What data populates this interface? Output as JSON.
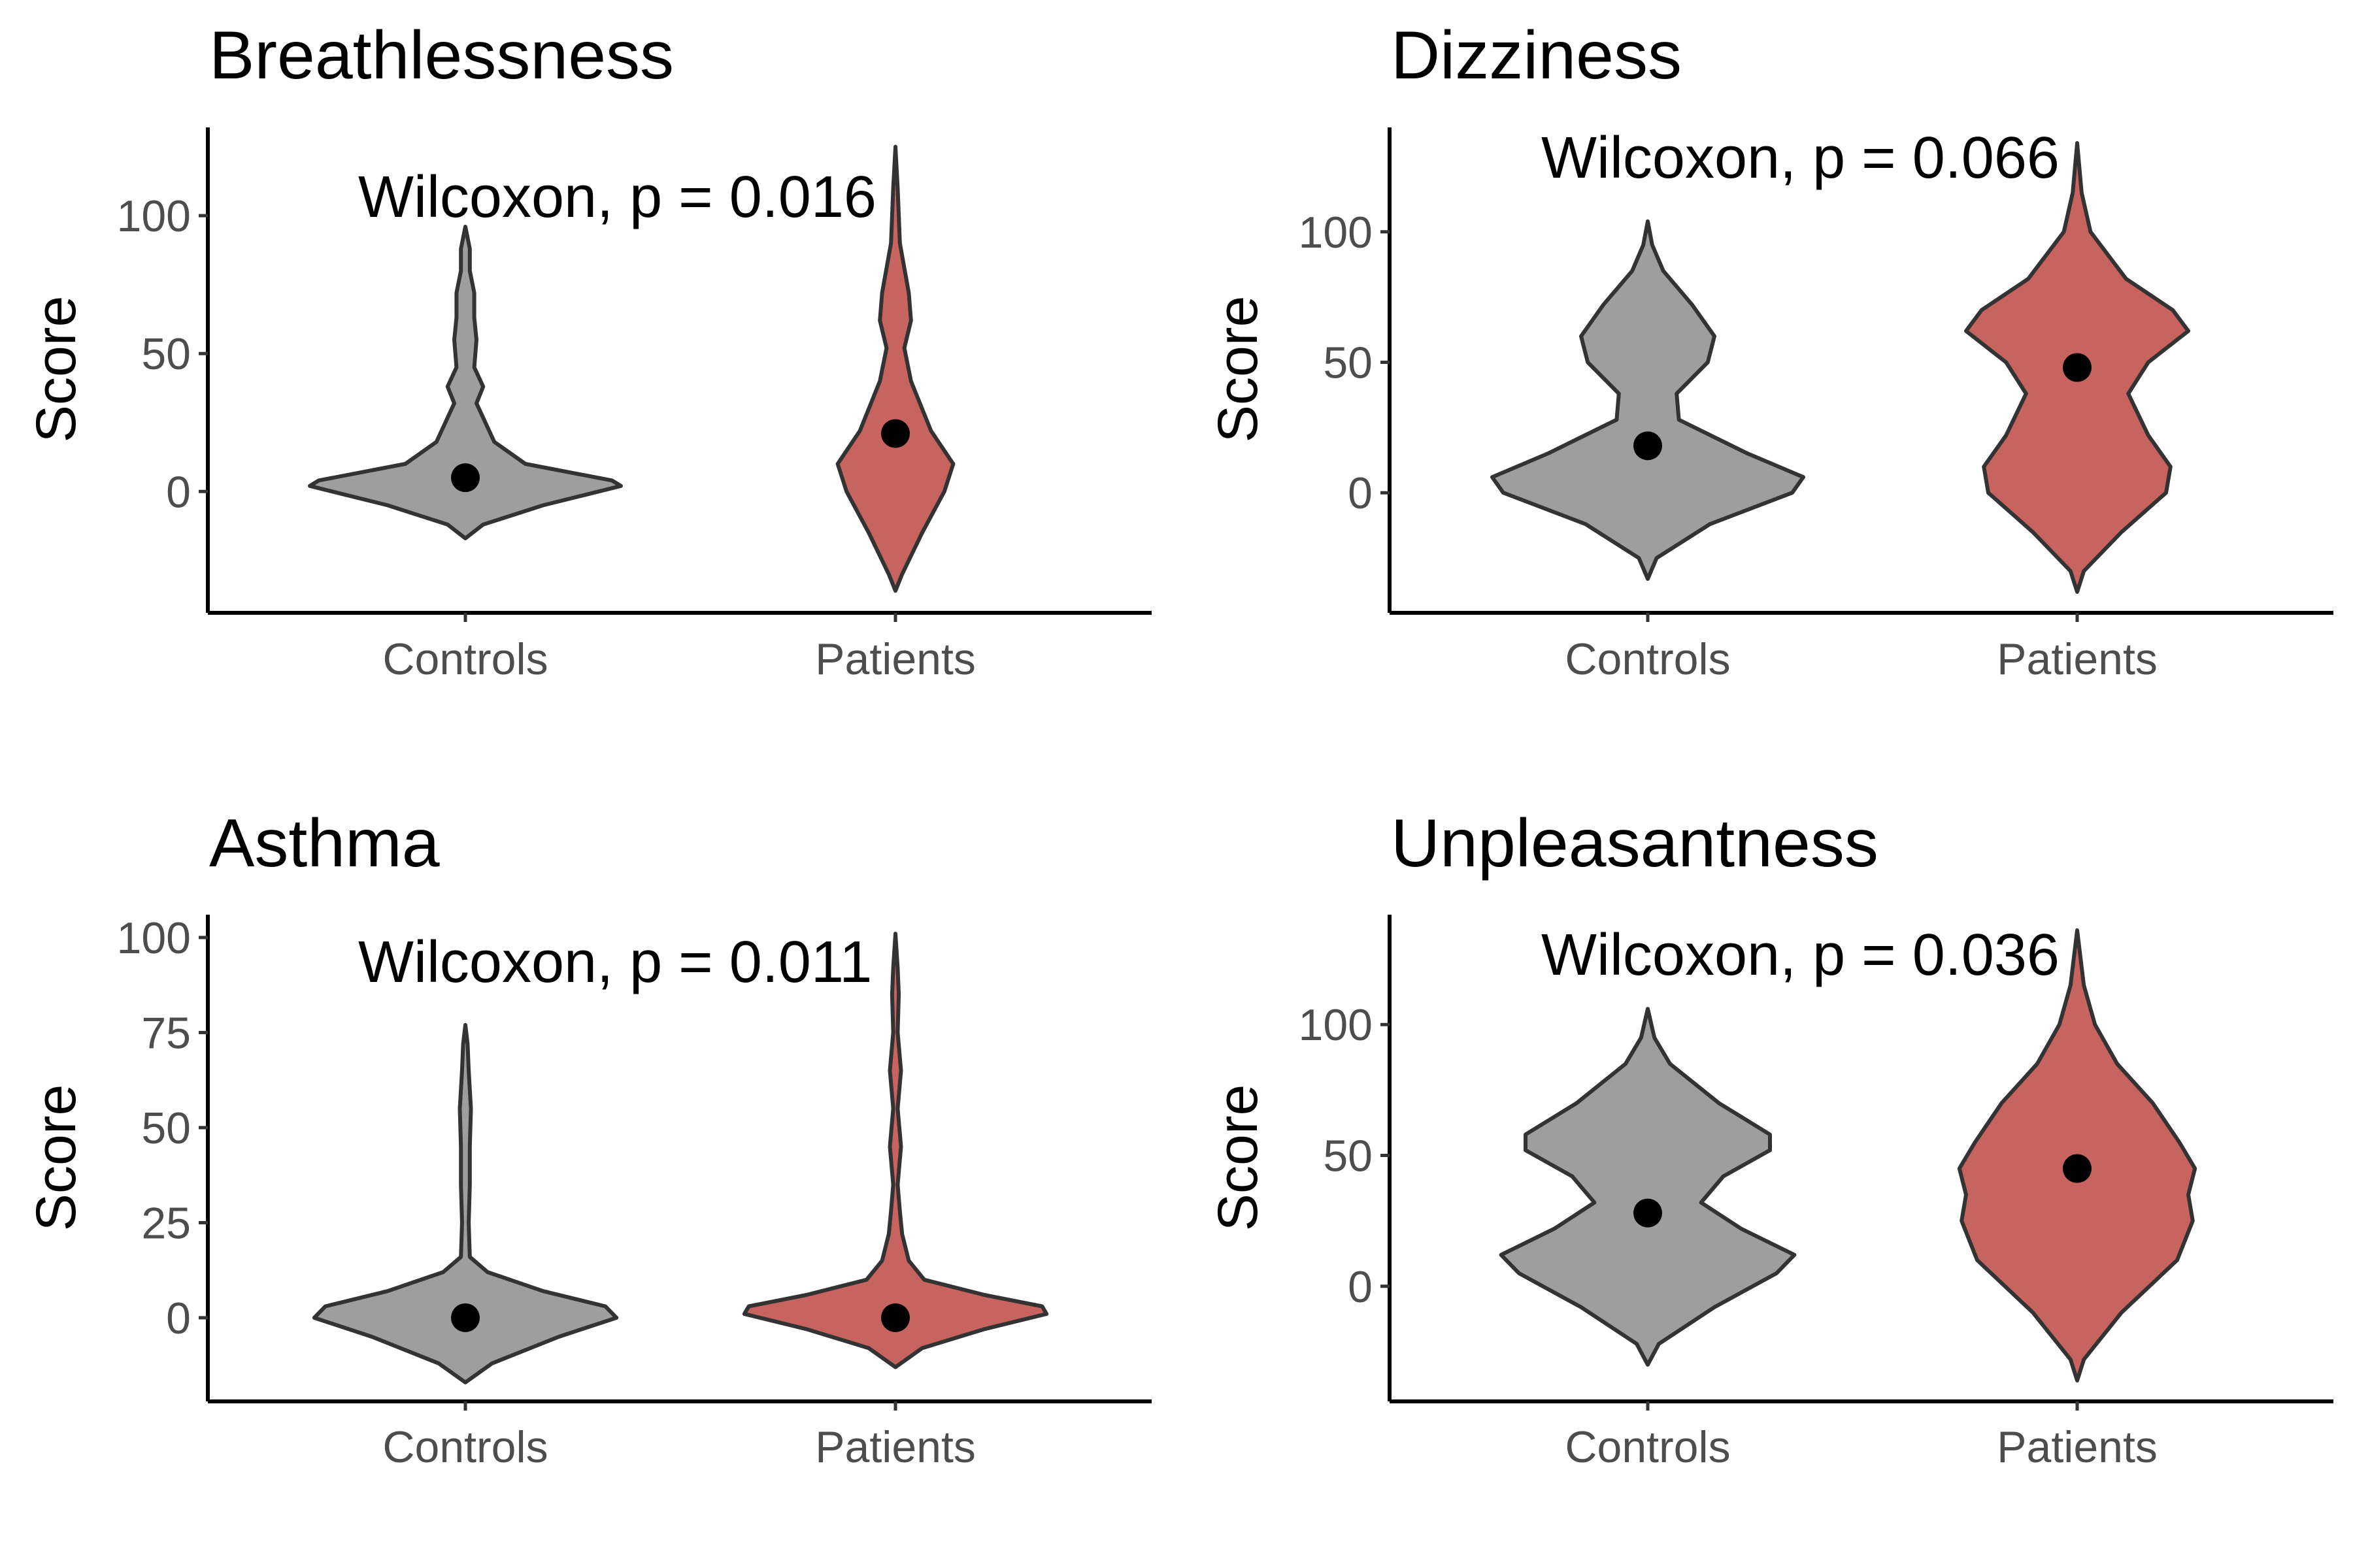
{
  "chart_data": [
    {
      "type": "violin",
      "title": "Breathlessness",
      "ylabel": "Score",
      "xlabel": "",
      "categories": [
        "Controls",
        "Patients"
      ],
      "ylim": [
        -44,
        132
      ],
      "yticks": [
        0,
        50,
        100
      ],
      "annotation": "Wilcoxon, p = 0.016",
      "colors": [
        "#9e9e9e",
        "#c8645f"
      ],
      "series": [
        {
          "category": "Controls",
          "center": 5,
          "profile": [
            [
              -17,
              0
            ],
            [
              -12,
              0.08
            ],
            [
              -5,
              0.35
            ],
            [
              2,
              0.7
            ],
            [
              4,
              0.66
            ],
            [
              10,
              0.27
            ],
            [
              18,
              0.13
            ],
            [
              25,
              0.09
            ],
            [
              32,
              0.05
            ],
            [
              38,
              0.08
            ],
            [
              45,
              0.04
            ],
            [
              55,
              0.05
            ],
            [
              63,
              0.04
            ],
            [
              72,
              0.04
            ],
            [
              80,
              0.02
            ],
            [
              88,
              0.02
            ],
            [
              96,
              0
            ]
          ]
        },
        {
          "category": "Patients",
          "center": 21,
          "profile": [
            [
              -36,
              0
            ],
            [
              -30,
              0.03
            ],
            [
              -15,
              0.12
            ],
            [
              0,
              0.22
            ],
            [
              10,
              0.26
            ],
            [
              22,
              0.16
            ],
            [
              40,
              0.07
            ],
            [
              52,
              0.04
            ],
            [
              62,
              0.07
            ],
            [
              72,
              0.06
            ],
            [
              90,
              0.02
            ],
            [
              110,
              0.01
            ],
            [
              125,
              0
            ]
          ]
        }
      ]
    },
    {
      "type": "violin",
      "title": "Dizziness",
      "ylabel": "Score",
      "xlabel": "",
      "categories": [
        "Controls",
        "Patients"
      ],
      "ylim": [
        -46,
        140
      ],
      "yticks": [
        0,
        50,
        100
      ],
      "annotation": "Wilcoxon, p = 0.066",
      "colors": [
        "#9e9e9e",
        "#c8645f"
      ],
      "series": [
        {
          "category": "Controls",
          "center": 18,
          "profile": [
            [
              -33,
              0
            ],
            [
              -25,
              0.04
            ],
            [
              -12,
              0.28
            ],
            [
              0,
              0.65
            ],
            [
              6,
              0.7
            ],
            [
              15,
              0.45
            ],
            [
              28,
              0.14
            ],
            [
              38,
              0.13
            ],
            [
              50,
              0.27
            ],
            [
              60,
              0.3
            ],
            [
              72,
              0.2
            ],
            [
              85,
              0.07
            ],
            [
              95,
              0.02
            ],
            [
              104,
              0
            ]
          ]
        },
        {
          "category": "Patients",
          "center": 48,
          "profile": [
            [
              -38,
              0
            ],
            [
              -30,
              0.03
            ],
            [
              -15,
              0.2
            ],
            [
              0,
              0.4
            ],
            [
              10,
              0.42
            ],
            [
              22,
              0.32
            ],
            [
              38,
              0.23
            ],
            [
              50,
              0.32
            ],
            [
              62,
              0.5
            ],
            [
              70,
              0.43
            ],
            [
              82,
              0.22
            ],
            [
              100,
              0.06
            ],
            [
              115,
              0.02
            ],
            [
              134,
              0
            ]
          ]
        }
      ]
    },
    {
      "type": "violin",
      "title": "Asthma",
      "ylabel": "Score",
      "xlabel": "",
      "categories": [
        "Controls",
        "Patients"
      ],
      "ylim": [
        -22,
        106
      ],
      "yticks": [
        0,
        25,
        50,
        75,
        100
      ],
      "annotation": "Wilcoxon, p = 0.011",
      "colors": [
        "#9e9e9e",
        "#c8645f"
      ],
      "series": [
        {
          "category": "Controls",
          "center": 0,
          "profile": [
            [
              -17,
              0
            ],
            [
              -12,
              0.12
            ],
            [
              -5,
              0.42
            ],
            [
              0,
              0.68
            ],
            [
              3,
              0.63
            ],
            [
              7,
              0.35
            ],
            [
              12,
              0.1
            ],
            [
              16,
              0.02
            ],
            [
              25,
              0.015
            ],
            [
              35,
              0.02
            ],
            [
              45,
              0.02
            ],
            [
              55,
              0.025
            ],
            [
              65,
              0.015
            ],
            [
              72,
              0.01
            ],
            [
              77,
              0
            ]
          ]
        },
        {
          "category": "Patients",
          "center": 0,
          "profile": [
            [
              -13,
              0
            ],
            [
              -8,
              0.12
            ],
            [
              -3,
              0.4
            ],
            [
              1,
              0.68
            ],
            [
              3,
              0.66
            ],
            [
              6,
              0.4
            ],
            [
              10,
              0.13
            ],
            [
              15,
              0.06
            ],
            [
              22,
              0.03
            ],
            [
              28,
              0.02
            ],
            [
              35,
              0.01
            ],
            [
              45,
              0.025
            ],
            [
              55,
              0.01
            ],
            [
              65,
              0.025
            ],
            [
              75,
              0.01
            ],
            [
              85,
              0.015
            ],
            [
              92,
              0.01
            ],
            [
              101,
              0
            ]
          ]
        }
      ]
    },
    {
      "type": "violin",
      "title": "Unpleasantness",
      "ylabel": "Score",
      "xlabel": "",
      "categories": [
        "Controls",
        "Patients"
      ],
      "ylim": [
        -44,
        142
      ],
      "yticks": [
        0,
        50,
        100
      ],
      "annotation": "Wilcoxon, p = 0.036",
      "colors": [
        "#9e9e9e",
        "#c8645f"
      ],
      "series": [
        {
          "category": "Controls",
          "center": 28,
          "profile": [
            [
              -30,
              0
            ],
            [
              -22,
              0.05
            ],
            [
              -8,
              0.3
            ],
            [
              5,
              0.58
            ],
            [
              12,
              0.66
            ],
            [
              22,
              0.42
            ],
            [
              32,
              0.24
            ],
            [
              42,
              0.34
            ],
            [
              52,
              0.55
            ],
            [
              58,
              0.55
            ],
            [
              70,
              0.32
            ],
            [
              85,
              0.1
            ],
            [
              95,
              0.03
            ],
            [
              106,
              0
            ]
          ]
        },
        {
          "category": "Patients",
          "center": 45,
          "profile": [
            [
              -36,
              0
            ],
            [
              -28,
              0.03
            ],
            [
              -10,
              0.2
            ],
            [
              10,
              0.45
            ],
            [
              25,
              0.52
            ],
            [
              35,
              0.5
            ],
            [
              45,
              0.53
            ],
            [
              55,
              0.46
            ],
            [
              70,
              0.34
            ],
            [
              85,
              0.18
            ],
            [
              100,
              0.08
            ],
            [
              115,
              0.03
            ],
            [
              136,
              0
            ]
          ]
        }
      ]
    }
  ]
}
